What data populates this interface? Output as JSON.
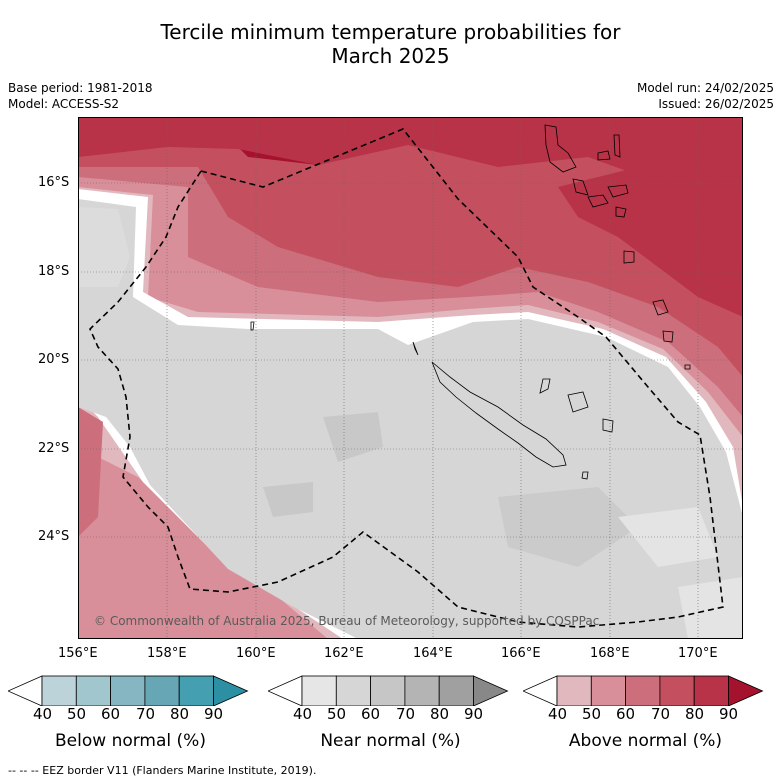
{
  "header": {
    "title_line1": "Tercile minimum temperature probabilities for",
    "title_line2": "March 2025",
    "base_period": "Base period: 1981-2018",
    "model": "Model: ACCESS-S2",
    "model_run": "Model run: 24/02/2025",
    "issued": "Issued: 26/02/2025"
  },
  "map": {
    "lat_ticks": [
      "16°S",
      "18°S",
      "20°S",
      "22°S",
      "24°S"
    ],
    "lon_ticks": [
      "156°E",
      "158°E",
      "160°E",
      "162°E",
      "164°E",
      "166°E",
      "168°E",
      "170°E"
    ],
    "copyright": "© Commonwealth of Australia 2025, Bureau of Meteorology, supported by COSPPac",
    "colors": {
      "near_normal_base": "#d6d6d6",
      "above_40": "#e2b8bf",
      "above_50": "#d88f99",
      "above_60": "#cc6e7b",
      "above_70": "#c4505f",
      "above_80": "#b83248",
      "above_90": "#a5122e"
    }
  },
  "colorbars": [
    {
      "label": "Below normal (%)",
      "ticks": [
        "40",
        "50",
        "60",
        "70",
        "80",
        "90"
      ],
      "colors": [
        "#ffffff",
        "#bcd3da",
        "#a2c6cd",
        "#86b6c1",
        "#67a6b4",
        "#44a0b1",
        "#2c8fa3"
      ]
    },
    {
      "label": "Near normal (%)",
      "ticks": [
        "40",
        "50",
        "60",
        "70",
        "80",
        "90"
      ],
      "colors": [
        "#ffffff",
        "#e6e6e6",
        "#d6d6d6",
        "#c6c6c6",
        "#b4b4b4",
        "#a0a0a0",
        "#888888"
      ]
    },
    {
      "label": "Above normal (%)",
      "ticks": [
        "40",
        "50",
        "60",
        "70",
        "80",
        "90"
      ],
      "colors": [
        "#ffffff",
        "#e2b8bf",
        "#d88f99",
        "#cc6e7b",
        "#c4505f",
        "#b83248",
        "#a5122e"
      ]
    }
  ],
  "footnote": "--  --  -- EEZ border V11 (Flanders Marine Institute, 2019)."
}
